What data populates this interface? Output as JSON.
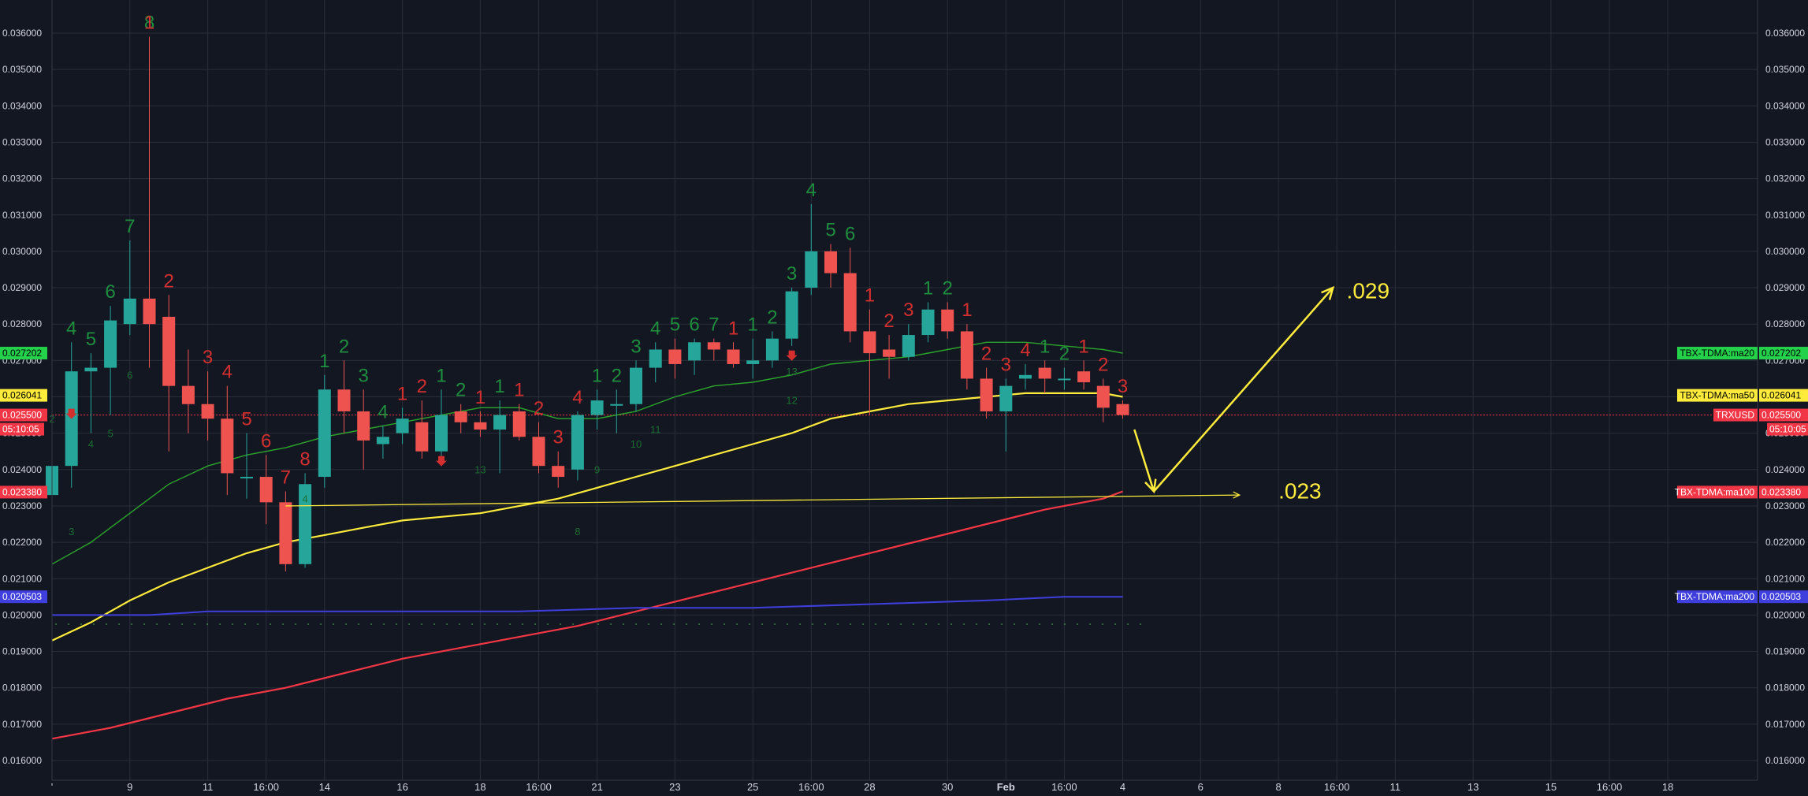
{
  "chart_data": {
    "type": "candlestick",
    "symbol": "TRXUSD",
    "countdown": "05:10:05",
    "ylim": [
      0.0155,
      0.0366
    ],
    "y_ticks": [
      "0.016000",
      "0.017000",
      "0.018000",
      "0.019000",
      "0.020000",
      "0.021000",
      "0.022000",
      "0.023000",
      "0.024000",
      "0.025000",
      "0.026000",
      "0.027000",
      "0.028000",
      "0.029000",
      "0.030000",
      "0.031000",
      "0.032000",
      "0.033000",
      "0.034000",
      "0.035000",
      "0.036000"
    ],
    "x_range": [
      0,
      86
    ],
    "x_ticks": [
      {
        "i": 0,
        "label": "'"
      },
      {
        "i": 4,
        "label": "9"
      },
      {
        "i": 8,
        "label": "11"
      },
      {
        "i": 11,
        "label": "16:00"
      },
      {
        "i": 14,
        "label": "14"
      },
      {
        "i": 18,
        "label": "16"
      },
      {
        "i": 22,
        "label": "18"
      },
      {
        "i": 25,
        "label": "16:00"
      },
      {
        "i": 28,
        "label": "21"
      },
      {
        "i": 32,
        "label": "23"
      },
      {
        "i": 36,
        "label": "25"
      },
      {
        "i": 39,
        "label": "16:00"
      },
      {
        "i": 42,
        "label": "28"
      },
      {
        "i": 46,
        "label": "30"
      },
      {
        "i": 49,
        "label": "Feb",
        "bold": true
      },
      {
        "i": 52,
        "label": "16:00"
      },
      {
        "i": 55,
        "label": "4"
      },
      {
        "i": 59,
        "label": "6"
      },
      {
        "i": 63,
        "label": "8"
      },
      {
        "i": 66,
        "label": "16:00"
      },
      {
        "i": 69,
        "label": "11"
      },
      {
        "i": 73,
        "label": "13"
      },
      {
        "i": 77,
        "label": "15"
      },
      {
        "i": 80,
        "label": "16:00"
      },
      {
        "i": 83,
        "label": "18"
      }
    ],
    "candles": [
      [
        0.0233,
        0.0248,
        0.0232,
        0.0241
      ],
      [
        0.0241,
        0.0275,
        0.0235,
        0.0267
      ],
      [
        0.0267,
        0.0272,
        0.025,
        0.0268
      ],
      [
        0.0268,
        0.0285,
        0.0255,
        0.0281
      ],
      [
        0.028,
        0.0303,
        0.0277,
        0.0287
      ],
      [
        0.0287,
        0.0359,
        0.0268,
        0.028
      ],
      [
        0.0282,
        0.0288,
        0.0245,
        0.0263
      ],
      [
        0.0263,
        0.0273,
        0.025,
        0.0258
      ],
      [
        0.0258,
        0.0267,
        0.0248,
        0.0254
      ],
      [
        0.0254,
        0.0263,
        0.0233,
        0.0239
      ],
      [
        0.0238,
        0.025,
        0.0232,
        0.0238
      ],
      [
        0.0238,
        0.0244,
        0.0225,
        0.0231
      ],
      [
        0.0231,
        0.0234,
        0.0212,
        0.0214
      ],
      [
        0.0214,
        0.0239,
        0.0213,
        0.0236
      ],
      [
        0.0238,
        0.0266,
        0.0235,
        0.0262
      ],
      [
        0.0262,
        0.027,
        0.025,
        0.0256
      ],
      [
        0.0256,
        0.0262,
        0.024,
        0.0248
      ],
      [
        0.0247,
        0.0252,
        0.0243,
        0.0249
      ],
      [
        0.025,
        0.0257,
        0.0247,
        0.0254
      ],
      [
        0.0253,
        0.0259,
        0.0243,
        0.0245
      ],
      [
        0.0245,
        0.0262,
        0.0243,
        0.0255
      ],
      [
        0.0256,
        0.0258,
        0.025,
        0.0253
      ],
      [
        0.0253,
        0.0256,
        0.0249,
        0.0251
      ],
      [
        0.0251,
        0.0259,
        0.0239,
        0.0255
      ],
      [
        0.0256,
        0.0258,
        0.0248,
        0.0249
      ],
      [
        0.0249,
        0.0253,
        0.0239,
        0.0241
      ],
      [
        0.0241,
        0.0245,
        0.0235,
        0.0238
      ],
      [
        0.024,
        0.0256,
        0.0237,
        0.0255
      ],
      [
        0.0255,
        0.0262,
        0.0251,
        0.0259
      ],
      [
        0.0258,
        0.0262,
        0.025,
        0.0258
      ],
      [
        0.0258,
        0.027,
        0.0256,
        0.0268
      ],
      [
        0.0268,
        0.0275,
        0.0264,
        0.0273
      ],
      [
        0.0273,
        0.0276,
        0.0265,
        0.0269
      ],
      [
        0.027,
        0.0276,
        0.0266,
        0.0275
      ],
      [
        0.0275,
        0.0276,
        0.027,
        0.0273
      ],
      [
        0.0273,
        0.0275,
        0.0268,
        0.0269
      ],
      [
        0.0269,
        0.0276,
        0.0265,
        0.027
      ],
      [
        0.027,
        0.0278,
        0.0268,
        0.0276
      ],
      [
        0.0276,
        0.029,
        0.0274,
        0.0289
      ],
      [
        0.029,
        0.0313,
        0.0288,
        0.03
      ],
      [
        0.03,
        0.0302,
        0.029,
        0.0294
      ],
      [
        0.0294,
        0.0301,
        0.0275,
        0.0278
      ],
      [
        0.0278,
        0.0284,
        0.0255,
        0.0272
      ],
      [
        0.0273,
        0.0277,
        0.0265,
        0.0271
      ],
      [
        0.0271,
        0.028,
        0.027,
        0.0277
      ],
      [
        0.0277,
        0.0286,
        0.0275,
        0.0284
      ],
      [
        0.0284,
        0.0286,
        0.0276,
        0.0278
      ],
      [
        0.0278,
        0.028,
        0.0262,
        0.0265
      ],
      [
        0.0265,
        0.0268,
        0.0254,
        0.0256
      ],
      [
        0.0256,
        0.0265,
        0.0245,
        0.0263
      ],
      [
        0.0265,
        0.0269,
        0.0262,
        0.0266
      ],
      [
        0.0268,
        0.027,
        0.0261,
        0.0265
      ],
      [
        0.0265,
        0.0268,
        0.0262,
        0.0265
      ],
      [
        0.0267,
        0.027,
        0.0262,
        0.0264
      ],
      [
        0.0263,
        0.0265,
        0.0253,
        0.0257
      ],
      [
        0.0258,
        0.0259,
        0.0254,
        0.0255
      ]
    ],
    "series": [
      {
        "name": "TBX-TDMA:ma20",
        "color": "#2ba62b",
        "width": 1.4,
        "value_label": "0.027202",
        "points": [
          [
            0,
            0.0214
          ],
          [
            2,
            0.022
          ],
          [
            4,
            0.0228
          ],
          [
            6,
            0.0236
          ],
          [
            8,
            0.0241
          ],
          [
            10,
            0.0244
          ],
          [
            12,
            0.0246
          ],
          [
            14,
            0.0249
          ],
          [
            16,
            0.0251
          ],
          [
            18,
            0.0253
          ],
          [
            20,
            0.0255
          ],
          [
            22,
            0.0257
          ],
          [
            24,
            0.0257
          ],
          [
            26,
            0.0254
          ],
          [
            28,
            0.0254
          ],
          [
            30,
            0.0256
          ],
          [
            32,
            0.026
          ],
          [
            34,
            0.0263
          ],
          [
            36,
            0.0264
          ],
          [
            38,
            0.0266
          ],
          [
            40,
            0.0269
          ],
          [
            42,
            0.027
          ],
          [
            44,
            0.0271
          ],
          [
            46,
            0.0273
          ],
          [
            48,
            0.0275
          ],
          [
            50,
            0.0275
          ],
          [
            52,
            0.0274
          ],
          [
            54,
            0.0273
          ],
          [
            55,
            0.0272
          ]
        ]
      },
      {
        "name": "TBX-TDMA:ma50",
        "color": "#ffeb3b",
        "width": 2.2,
        "value_label": "0.026041",
        "points": [
          [
            0,
            0.0193
          ],
          [
            2,
            0.0198
          ],
          [
            4,
            0.0204
          ],
          [
            6,
            0.0209
          ],
          [
            8,
            0.0213
          ],
          [
            10,
            0.0217
          ],
          [
            12,
            0.022
          ],
          [
            14,
            0.0222
          ],
          [
            16,
            0.0224
          ],
          [
            18,
            0.0226
          ],
          [
            20,
            0.0227
          ],
          [
            22,
            0.0228
          ],
          [
            24,
            0.023
          ],
          [
            26,
            0.0232
          ],
          [
            28,
            0.0235
          ],
          [
            30,
            0.0238
          ],
          [
            32,
            0.0241
          ],
          [
            34,
            0.0244
          ],
          [
            36,
            0.0247
          ],
          [
            38,
            0.025
          ],
          [
            40,
            0.0254
          ],
          [
            42,
            0.0256
          ],
          [
            44,
            0.0258
          ],
          [
            46,
            0.0259
          ],
          [
            48,
            0.026
          ],
          [
            50,
            0.0261
          ],
          [
            52,
            0.0261
          ],
          [
            54,
            0.0261
          ],
          [
            55,
            0.026
          ]
        ]
      },
      {
        "name": "TBX-TDMA:ma100",
        "color": "#f23645",
        "width": 2.2,
        "value_label": "0.023380",
        "points": [
          [
            0,
            0.0166
          ],
          [
            3,
            0.0169
          ],
          [
            6,
            0.0173
          ],
          [
            9,
            0.0177
          ],
          [
            12,
            0.018
          ],
          [
            15,
            0.0184
          ],
          [
            18,
            0.0188
          ],
          [
            21,
            0.0191
          ],
          [
            24,
            0.0194
          ],
          [
            27,
            0.0197
          ],
          [
            30,
            0.0201
          ],
          [
            33,
            0.0205
          ],
          [
            36,
            0.0209
          ],
          [
            39,
            0.0213
          ],
          [
            42,
            0.0217
          ],
          [
            45,
            0.0221
          ],
          [
            48,
            0.0225
          ],
          [
            51,
            0.0229
          ],
          [
            54,
            0.0232
          ],
          [
            55,
            0.0234
          ]
        ]
      },
      {
        "name": "TBX-TDMA:ma200",
        "color": "#3f3fdd",
        "width": 2,
        "value_label": "0.020503",
        "points": [
          [
            0,
            0.02
          ],
          [
            5,
            0.02
          ],
          [
            8,
            0.0201
          ],
          [
            14,
            0.0201
          ],
          [
            18,
            0.0201
          ],
          [
            24,
            0.0201
          ],
          [
            30,
            0.0202
          ],
          [
            36,
            0.0202
          ],
          [
            42,
            0.0203
          ],
          [
            48,
            0.0204
          ],
          [
            52,
            0.0205
          ],
          [
            55,
            0.0205
          ]
        ]
      }
    ],
    "price_line": {
      "name": "TRXUSD",
      "value": 0.0255,
      "value_label": "0.025500",
      "color": "#f23645"
    },
    "seq_labels": [
      {
        "i": 1,
        "t": "4",
        "c": "g",
        "p": "h"
      },
      {
        "i": 2,
        "t": "5",
        "c": "g",
        "p": "h"
      },
      {
        "i": 3,
        "t": "6",
        "c": "g",
        "p": "h"
      },
      {
        "i": 4,
        "t": "7",
        "c": "g",
        "p": "h"
      },
      {
        "i": 5,
        "t": "8",
        "c": "g",
        "p": "h"
      },
      {
        "i": 5,
        "t": "1",
        "c": "r",
        "p": "h"
      },
      {
        "i": 6,
        "t": "2",
        "c": "r",
        "p": "h"
      },
      {
        "i": 8,
        "t": "3",
        "c": "r",
        "p": "h"
      },
      {
        "i": 9,
        "t": "4",
        "c": "r",
        "p": "h"
      },
      {
        "i": 10,
        "t": "5",
        "c": "r",
        "p": "h"
      },
      {
        "i": 11,
        "t": "6",
        "c": "r",
        "p": "h"
      },
      {
        "i": 12,
        "t": "7",
        "c": "r",
        "p": "h"
      },
      {
        "i": 13,
        "t": "8",
        "c": "r",
        "p": "h"
      },
      {
        "i": 14,
        "t": "1",
        "c": "g",
        "p": "h"
      },
      {
        "i": 15,
        "t": "2",
        "c": "g",
        "p": "h"
      },
      {
        "i": 16,
        "t": "3",
        "c": "g",
        "p": "h"
      },
      {
        "i": 17,
        "t": "4",
        "c": "g",
        "p": "h"
      },
      {
        "i": 18,
        "t": "1",
        "c": "r",
        "p": "h"
      },
      {
        "i": 19,
        "t": "2",
        "c": "r",
        "p": "h"
      },
      {
        "i": 20,
        "t": "1",
        "c": "g",
        "p": "h"
      },
      {
        "i": 21,
        "t": "2",
        "c": "g",
        "p": "h"
      },
      {
        "i": 22,
        "t": "1",
        "c": "r",
        "p": "h"
      },
      {
        "i": 23,
        "t": "1",
        "c": "g",
        "p": "h"
      },
      {
        "i": 24,
        "t": "1",
        "c": "r",
        "p": "h"
      },
      {
        "i": 25,
        "t": "2",
        "c": "r",
        "p": "h"
      },
      {
        "i": 26,
        "t": "3",
        "c": "r",
        "p": "h"
      },
      {
        "i": 27,
        "t": "4",
        "c": "r",
        "p": "h"
      },
      {
        "i": 28,
        "t": "1",
        "c": "g",
        "p": "h"
      },
      {
        "i": 29,
        "t": "2",
        "c": "g",
        "p": "h"
      },
      {
        "i": 30,
        "t": "3",
        "c": "g",
        "p": "h"
      },
      {
        "i": 31,
        "t": "4",
        "c": "g",
        "p": "h"
      },
      {
        "i": 32,
        "t": "5",
        "c": "g",
        "p": "h"
      },
      {
        "i": 33,
        "t": "6",
        "c": "g",
        "p": "h"
      },
      {
        "i": 34,
        "t": "7",
        "c": "g",
        "p": "h"
      },
      {
        "i": 35,
        "t": "1",
        "c": "r",
        "p": "h"
      },
      {
        "i": 36,
        "t": "1",
        "c": "g",
        "p": "h"
      },
      {
        "i": 37,
        "t": "2",
        "c": "g",
        "p": "h"
      },
      {
        "i": 38,
        "t": "3",
        "c": "g",
        "p": "h"
      },
      {
        "i": 39,
        "t": "4",
        "c": "g",
        "p": "h"
      },
      {
        "i": 40,
        "t": "5",
        "c": "g",
        "p": "h"
      },
      {
        "i": 41,
        "t": "6",
        "c": "g",
        "p": "h"
      },
      {
        "i": 42,
        "t": "1",
        "c": "r",
        "p": "h"
      },
      {
        "i": 43,
        "t": "2",
        "c": "r",
        "p": "h"
      },
      {
        "i": 44,
        "t": "3",
        "c": "r",
        "p": "h"
      },
      {
        "i": 45,
        "t": "1",
        "c": "g",
        "p": "h"
      },
      {
        "i": 46,
        "t": "2",
        "c": "g",
        "p": "h"
      },
      {
        "i": 47,
        "t": "1",
        "c": "r",
        "p": "h"
      },
      {
        "i": 48,
        "t": "2",
        "c": "r",
        "p": "h"
      },
      {
        "i": 49,
        "t": "3",
        "c": "r",
        "p": "h"
      },
      {
        "i": 50,
        "t": "4",
        "c": "r",
        "p": "h"
      },
      {
        "i": 51,
        "t": "1",
        "c": "g",
        "p": "h"
      },
      {
        "i": 52,
        "t": "2",
        "c": "g",
        "p": "h"
      },
      {
        "i": 53,
        "t": "1",
        "c": "r",
        "p": "h"
      },
      {
        "i": 54,
        "t": "2",
        "c": "r",
        "p": "h"
      },
      {
        "i": 55,
        "t": "3",
        "c": "r",
        "p": "h"
      }
    ],
    "seq_small": [
      {
        "i": 0,
        "v": 0.0253,
        "t": "2"
      },
      {
        "i": 1,
        "v": 0.0222,
        "t": "3"
      },
      {
        "i": 2,
        "v": 0.0246,
        "t": "4"
      },
      {
        "i": 3,
        "v": 0.0249,
        "t": "5"
      },
      {
        "i": 4,
        "v": 0.0265,
        "t": "6"
      },
      {
        "i": 13,
        "v": 0.0231,
        "t": "4"
      },
      {
        "i": 22,
        "v": 0.0239,
        "t": "13"
      },
      {
        "i": 27,
        "v": 0.0222,
        "t": "8"
      },
      {
        "i": 28,
        "v": 0.0239,
        "t": "9"
      },
      {
        "i": 30,
        "v": 0.0246,
        "t": "10"
      },
      {
        "i": 31,
        "v": 0.025,
        "t": "11"
      },
      {
        "i": 38,
        "v": 0.0258,
        "t": "12"
      },
      {
        "i": 38,
        "v": 0.0266,
        "t": "13"
      }
    ],
    "down_arrows": [
      {
        "i": 1,
        "v": 0.0255
      },
      {
        "i": 20,
        "v": 0.0242
      },
      {
        "i": 38,
        "v": 0.0271
      }
    ],
    "annotations": [
      {
        "text": ".029",
        "x": 66.5,
        "y": 0.0289
      },
      {
        "text": ".023",
        "x": 63.0,
        "y": 0.0234
      }
    ],
    "drawings": {
      "hline": [
        [
          12,
          0.023
        ],
        [
          61,
          0.0233
        ]
      ],
      "arrow_down": [
        [
          55.6,
          0.0251
        ],
        [
          56.6,
          0.0234
        ]
      ],
      "arrow_up": [
        [
          56.6,
          0.0234
        ],
        [
          65.8,
          0.029
        ]
      ]
    }
  }
}
